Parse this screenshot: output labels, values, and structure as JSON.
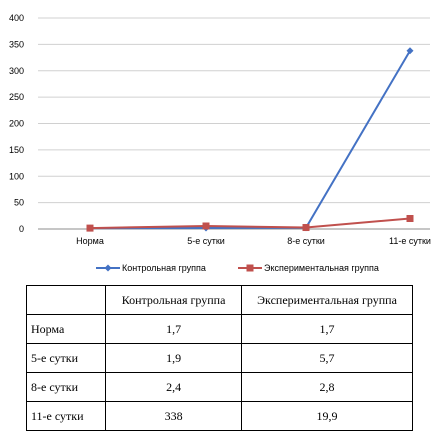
{
  "chart_data": {
    "type": "line",
    "categories": [
      "Норма",
      "5-е сутки",
      "8-е сутки",
      "11-е сутки"
    ],
    "series": [
      {
        "name": "Контрольная группа",
        "values": [
          1.7,
          1.9,
          2.4,
          338
        ],
        "color": "#4472C4",
        "marker": "diamond"
      },
      {
        "name": "Экспериментальная группа",
        "values": [
          1.7,
          5.7,
          2.8,
          19.9
        ],
        "color": "#C0504D",
        "marker": "square"
      }
    ],
    "ylim": [
      0,
      400
    ],
    "yticks": [
      0,
      50,
      100,
      150,
      200,
      250,
      300,
      350,
      400
    ],
    "grid": true,
    "legend_position": "bottom"
  },
  "table": {
    "headers": [
      "",
      "Контрольная группа",
      "Экспериментальная группа"
    ],
    "rows": [
      {
        "label": "Норма",
        "control": "1,7",
        "experimental": "1,7"
      },
      {
        "label": "5-е сутки",
        "control": "1,9",
        "experimental": "5,7"
      },
      {
        "label": "8-е сутки",
        "control": "2,4",
        "experimental": "2,8"
      },
      {
        "label": "11-е сутки",
        "control": "338",
        "experimental": "19,9"
      }
    ]
  }
}
